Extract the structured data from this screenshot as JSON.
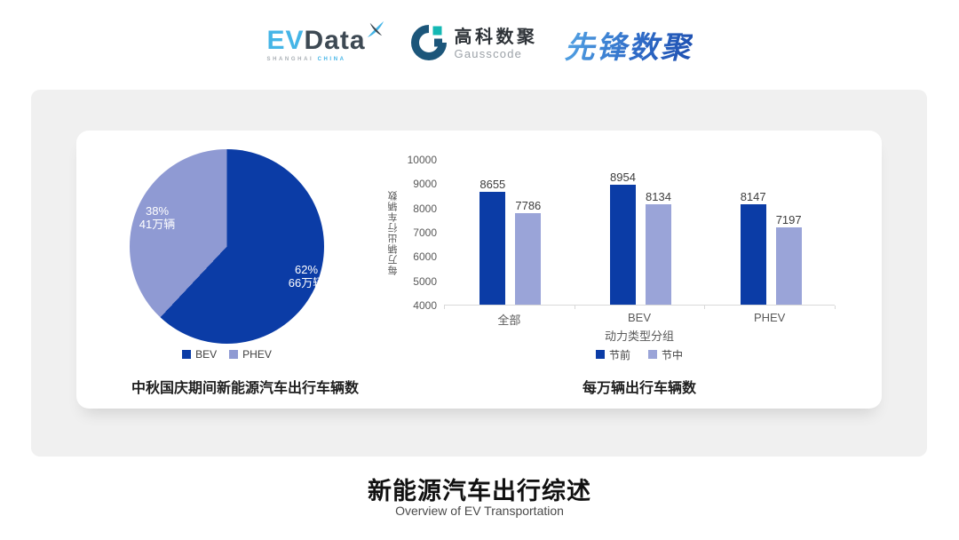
{
  "header": {
    "evdata": {
      "ev": "EV",
      "data": "Data",
      "sub_left": "SHANGHAI",
      "sub_right": "CHINA"
    },
    "gausscode": {
      "cn": "高科数聚",
      "en": "Gausscode"
    },
    "pioneer": {
      "text": "先锋数聚"
    }
  },
  "colors": {
    "dark_blue": "#0B3CA6",
    "light_blue": "#9AA4D8",
    "pie_light": "#8F9AD3",
    "panel_gray": "#F0F0F0",
    "axis_gray": "#D9D9D9"
  },
  "chart_data": [
    {
      "type": "pie",
      "title": "中秋国庆期间新能源汽车出行车辆数",
      "start_angle_deg": 0,
      "direction": "clockwise",
      "legend_position": "bottom",
      "slices": [
        {
          "label": "BEV",
          "percent": 62,
          "percent_label": "62%",
          "value_label": "66万辆",
          "color": "#0B3CA6"
        },
        {
          "label": "PHEV",
          "percent": 38,
          "percent_label": "38%",
          "value_label": "41万辆",
          "color": "#8F9AD3"
        }
      ]
    },
    {
      "type": "bar",
      "title": "每万辆出行车辆数",
      "xlabel": "动力类型分组",
      "ylabel": "每万辆出行车辆数",
      "categories": [
        "全部",
        "BEV",
        "PHEV"
      ],
      "series": [
        {
          "name": "节前",
          "color": "#0B3CA6",
          "values": [
            8655,
            8954,
            8147
          ]
        },
        {
          "name": "节中",
          "color": "#9AA4D8",
          "values": [
            7786,
            8134,
            7197
          ]
        }
      ],
      "ylim": [
        4000,
        10000
      ],
      "y_ticks": [
        10000,
        9000,
        8000,
        7000,
        6000,
        5000,
        4000
      ],
      "grid": false,
      "legend_position": "bottom"
    }
  ],
  "footer": {
    "title": "新能源汽车出行综述",
    "subtitle": "Overview of EV Transportation"
  }
}
